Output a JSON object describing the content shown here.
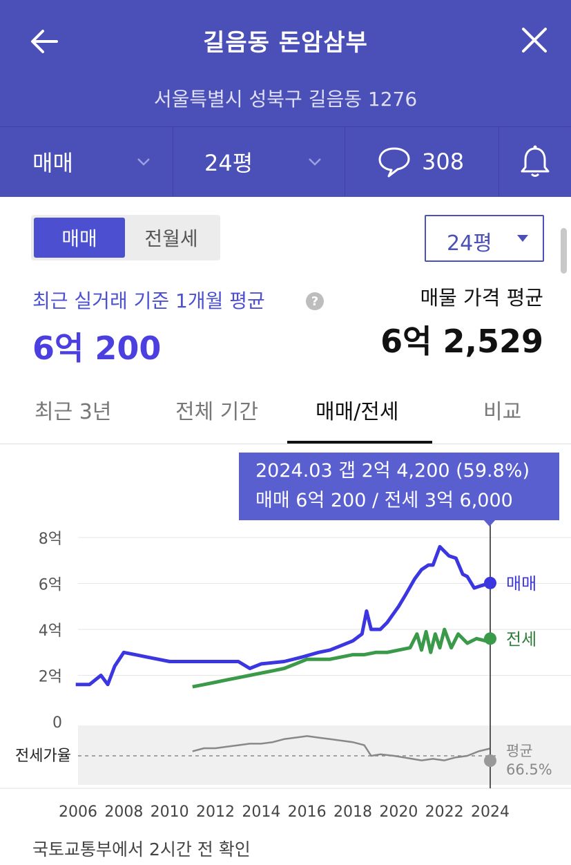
{
  "header": {
    "title": "길음동 돈암삼부",
    "address": "서울특별시 성북구 길음동 1276",
    "trade_type": "매매",
    "size": "24평",
    "comment_count": "308",
    "icons": {
      "back": "arrow-left-icon",
      "close": "close-icon",
      "comment": "speech-bubble-icon",
      "alert": "bell-icon"
    }
  },
  "toggle": {
    "sale": "매매",
    "rent": "전월세"
  },
  "size_select": {
    "value": "24평"
  },
  "summary": {
    "recent_label": "최근 실거래 기준 1개월 평균",
    "recent_price": "6억 200",
    "ask_label": "매물 가격 평균",
    "ask_price": "6억 2,529"
  },
  "tabs": [
    {
      "label": "최근 3년",
      "active": false
    },
    {
      "label": "전체 기간",
      "active": false
    },
    {
      "label": "매매/전세",
      "active": true
    },
    {
      "label": "비교",
      "active": false
    }
  ],
  "tooltip": {
    "line1": "2024.03  갭 2억 4,200 (59.8%)",
    "line2": "매매 6억 200 / 전세 3억 6,000"
  },
  "chart_data": {
    "type": "line",
    "y_ticks": [
      "8억",
      "6억",
      "4억",
      "2억",
      "0"
    ],
    "x_ticks": [
      "2006",
      "2008",
      "2010",
      "2012",
      "2014",
      "2016",
      "2018",
      "2020",
      "2022",
      "2024"
    ],
    "ylim": [
      0,
      8
    ],
    "y_unit": "억",
    "series": [
      {
        "name": "매매",
        "color": "#3b36e0",
        "x": [
          2005.9,
          2006.5,
          2007.0,
          2007.3,
          2007.6,
          2008.0,
          2008.5,
          2009.0,
          2010.0,
          2011.0,
          2012.0,
          2013.0,
          2013.5,
          2014.0,
          2015.0,
          2015.8,
          2016.5,
          2017.0,
          2017.5,
          2018.0,
          2018.4,
          2018.6,
          2018.8,
          2019.2,
          2019.5,
          2020.0,
          2020.3,
          2020.7,
          2021.0,
          2021.3,
          2021.5,
          2021.8,
          2022.2,
          2022.5,
          2022.8,
          2023.0,
          2023.3,
          2023.6,
          2024.0
        ],
        "values": [
          1.6,
          1.6,
          2.0,
          1.6,
          2.4,
          3.0,
          2.9,
          2.8,
          2.6,
          2.6,
          2.6,
          2.6,
          2.3,
          2.5,
          2.6,
          2.8,
          3.0,
          3.1,
          3.3,
          3.5,
          3.8,
          4.8,
          4.0,
          4.0,
          4.3,
          5.0,
          5.5,
          6.2,
          6.6,
          6.8,
          6.8,
          7.6,
          7.2,
          7.1,
          6.4,
          6.3,
          5.8,
          5.9,
          6.02
        ]
      },
      {
        "name": "전세",
        "color": "#3a9a4a",
        "x": [
          2011.0,
          2011.5,
          2012.0,
          2012.5,
          2013.0,
          2013.5,
          2014.0,
          2014.5,
          2015.0,
          2015.5,
          2016.0,
          2016.5,
          2017.0,
          2017.5,
          2018.0,
          2018.5,
          2019.0,
          2019.5,
          2020.0,
          2020.5,
          2020.8,
          2021.0,
          2021.2,
          2021.4,
          2021.6,
          2021.8,
          2022.0,
          2022.3,
          2022.6,
          2023.0,
          2023.4,
          2023.8,
          2024.0
        ],
        "values": [
          1.5,
          1.6,
          1.7,
          1.8,
          1.9,
          2.0,
          2.1,
          2.2,
          2.3,
          2.5,
          2.7,
          2.7,
          2.7,
          2.8,
          2.9,
          2.9,
          3.0,
          3.0,
          3.1,
          3.2,
          3.8,
          3.1,
          3.9,
          3.0,
          3.8,
          3.2,
          4.0,
          3.2,
          3.8,
          3.4,
          3.6,
          3.5,
          3.6
        ]
      },
      {
        "name": "전세가율",
        "x": [
          2011.0,
          2011.5,
          2012.0,
          2012.5,
          2013.0,
          2013.5,
          2014.0,
          2014.5,
          2015.0,
          2015.5,
          2016.0,
          2016.5,
          2017.0,
          2017.5,
          2018.0,
          2018.5,
          2018.8,
          2019.2,
          2019.8,
          2020.2,
          2020.6,
          2021.0,
          2021.5,
          2022.0,
          2022.5,
          2023.0,
          2023.5,
          2024.0
        ],
        "values": [
          58,
          60,
          60,
          61,
          62,
          63,
          63,
          64,
          66,
          67,
          68,
          67,
          66,
          65,
          64,
          62,
          55,
          56,
          55,
          54,
          53,
          52,
          53,
          52,
          54,
          55,
          58,
          59.8
        ]
      }
    ],
    "ratio_label": "전세가율",
    "ratio_avg_label": "평균",
    "ratio_avg_value": "66.5%",
    "marker_date": "2024.03"
  },
  "footer": {
    "note": "국토교통부에서 2시간 전 확인"
  }
}
